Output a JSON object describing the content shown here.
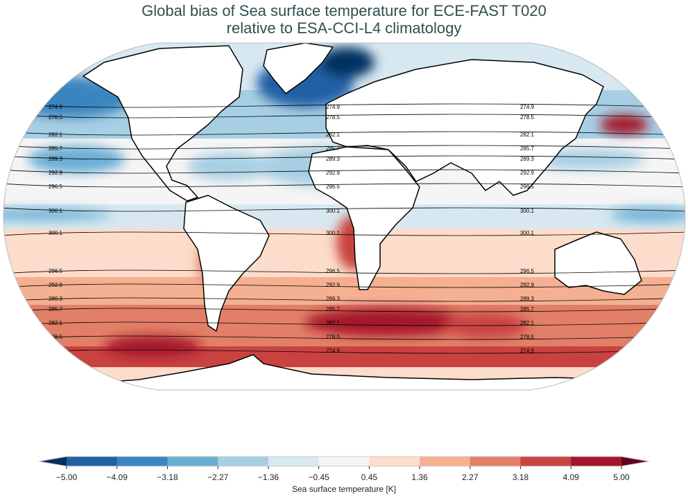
{
  "title": {
    "line1": "Global bias of Sea surface temperature for ECE-FAST T020",
    "line2": "relative to ESA-CCI-L4 climatology"
  },
  "map": {
    "projection": "Robinson",
    "variable": "sea surface temperature bias",
    "contour_levels": [
      "274.9",
      "278.5",
      "282.1",
      "285.7",
      "289.3",
      "292.9",
      "296.5",
      "300.1"
    ]
  },
  "colorbar": {
    "label": "Sea surface temperature [K]",
    "ticks": [
      "−5.00",
      "−4.09",
      "−3.18",
      "−2.27",
      "−1.36",
      "−0.45",
      "0.45",
      "1.36",
      "2.27",
      "3.18",
      "4.09",
      "5.00"
    ],
    "colors": [
      "#2361a5",
      "#3a85bf",
      "#6aaed4",
      "#a7cfe4",
      "#d8e8f1",
      "#f5f5f5",
      "#fcdcca",
      "#f5b091",
      "#e27f67",
      "#c94240",
      "#a4152a"
    ],
    "extend_low": "#053061",
    "extend_high": "#67001f"
  }
}
